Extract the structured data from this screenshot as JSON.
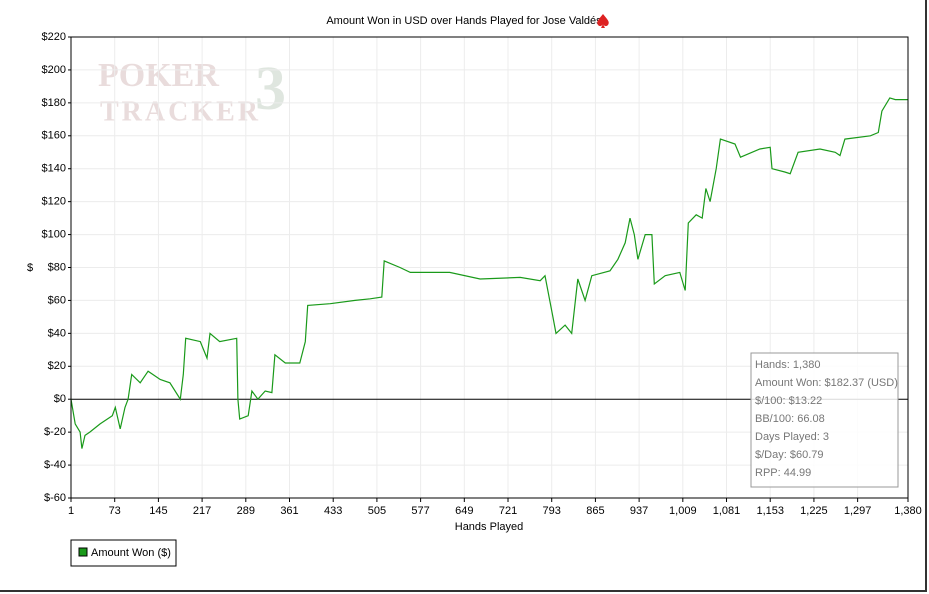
{
  "chart_data": {
    "type": "line",
    "title": "Amount Won in USD over Hands Played for Jose Valdés",
    "watermark": [
      "POKER",
      "TRACKER",
      "3"
    ],
    "xlabel": "Hands Played",
    "ylabel": "$",
    "xlim": [
      1,
      1380
    ],
    "ylim": [
      -60,
      220
    ],
    "xticks": [
      1,
      73,
      145,
      217,
      289,
      361,
      433,
      505,
      577,
      649,
      721,
      793,
      865,
      937,
      {
        "value": 1009,
        "label": "1,009"
      },
      {
        "value": 1081,
        "label": "1,081"
      },
      {
        "value": 1153,
        "label": "1,153"
      },
      {
        "value": 1225,
        "label": "1,225"
      },
      {
        "value": 1297,
        "label": "1,297"
      },
      {
        "value": 1380,
        "label": "1,380"
      }
    ],
    "yticks": [
      {
        "value": -60,
        "label": "$-60"
      },
      {
        "value": -40,
        "label": "$-40"
      },
      {
        "value": -20,
        "label": "$-20"
      },
      {
        "value": 0,
        "label": "$0"
      },
      {
        "value": 20,
        "label": "$20"
      },
      {
        "value": 40,
        "label": "$40"
      },
      {
        "value": 60,
        "label": "$60"
      },
      {
        "value": 80,
        "label": "$80"
      },
      {
        "value": 100,
        "label": "$100"
      },
      {
        "value": 120,
        "label": "$120"
      },
      {
        "value": 140,
        "label": "$140"
      },
      {
        "value": 160,
        "label": "$160"
      },
      {
        "value": 180,
        "label": "$180"
      },
      {
        "value": 200,
        "label": "$200"
      },
      {
        "value": 220,
        "label": "$220"
      }
    ],
    "grid": true,
    "x": [
      1,
      8,
      16,
      19,
      24,
      32,
      49,
      69,
      74,
      82,
      90,
      95,
      101,
      115,
      128,
      148,
      164,
      181,
      186,
      190,
      214,
      225,
      230,
      246,
      274,
      276,
      279,
      293,
      299,
      309,
      321,
      332,
      337,
      354,
      378,
      387,
      391,
      428,
      469,
      494,
      513,
      517,
      543,
      560,
      625,
      675,
      741,
      774,
      782,
      795,
      800,
      815,
      826,
      836,
      848,
      859,
      889,
      902,
      914,
      922,
      929,
      935,
      947,
      958,
      962,
      980,
      1004,
      1013,
      1018,
      1031,
      1041,
      1047,
      1054,
      1064,
      1071,
      1095,
      1104,
      1136,
      1153,
      1156,
      1177,
      1186,
      1199,
      1235,
      1260,
      1268,
      1276,
      1318,
      1331,
      1337,
      1350,
      1359,
      1380
    ],
    "series": [
      {
        "name": "Amount Won ($)",
        "color": "#1a9a1a",
        "values": [
          0,
          -15,
          -20,
          -30,
          -22,
          -20,
          -15,
          -10,
          -5,
          -18,
          -5,
          0,
          15,
          10,
          17,
          12,
          10,
          0,
          15,
          37,
          35,
          25,
          40,
          35,
          37,
          0,
          -12,
          -10,
          5,
          0,
          5,
          4,
          27,
          22,
          22,
          35,
          57,
          58,
          60,
          61,
          62,
          84,
          80,
          77,
          77,
          73,
          74,
          72,
          75,
          50,
          40,
          45,
          40,
          73,
          60,
          75,
          78,
          85,
          95,
          110,
          100,
          85,
          100,
          100,
          70,
          75,
          77,
          66,
          107,
          112,
          110,
          128,
          120,
          140,
          158,
          155,
          147,
          152,
          153,
          140,
          138,
          137,
          150,
          152,
          150,
          148,
          158,
          160,
          162,
          175,
          183,
          182,
          182
        ]
      }
    ],
    "legend": "bottom-left",
    "stats": [
      "Hands: 1,380",
      "Amount Won: $182.37 (USD)",
      "$/100: $13.22",
      "BB/100: 66.08",
      "Days Played: 3",
      "$/Day: $60.79",
      "RPP: 44.99"
    ]
  }
}
